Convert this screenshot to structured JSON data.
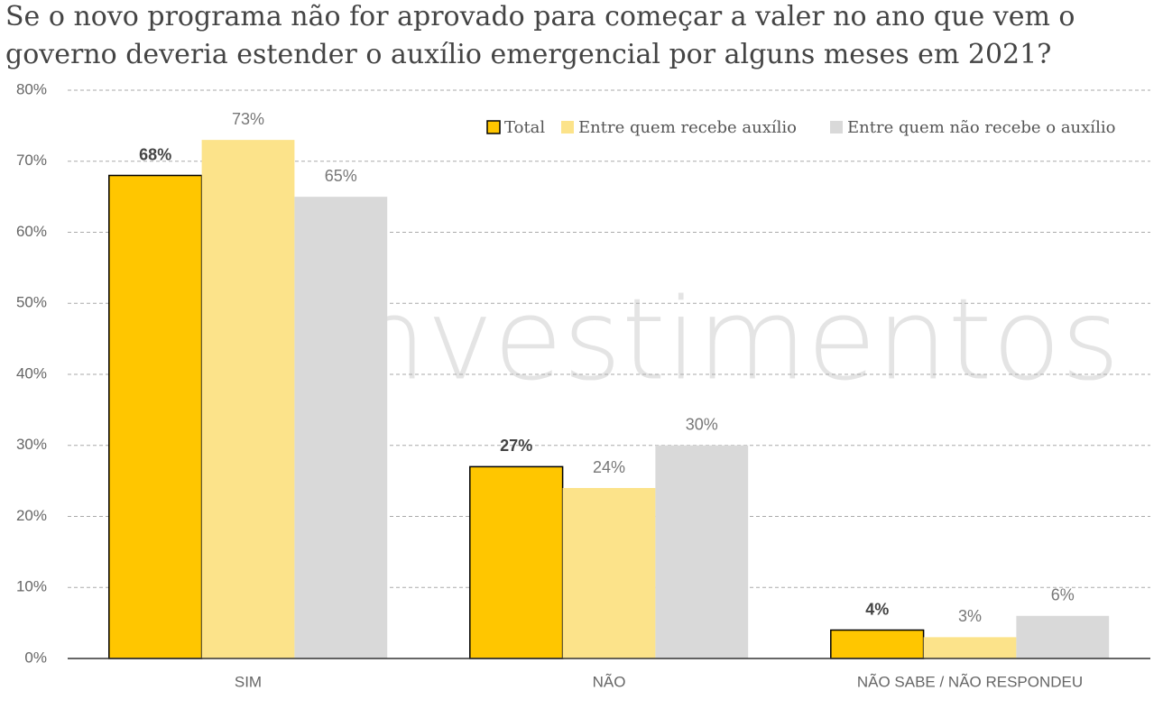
{
  "chart_data": {
    "type": "bar",
    "title": [
      "Se o novo programa não for aprovado para começar a valer no ano que vem o",
      "governo deveria estender o auxílio emergencial por alguns meses em 2021?"
    ],
    "watermark": "investimentos",
    "categories": [
      "SIM",
      "NÃO",
      "NÃO SABE / NÃO RESPONDEU"
    ],
    "series": [
      {
        "name": "Total",
        "color": "#FFC600",
        "values": [
          68,
          27,
          4
        ],
        "value_labels": [
          "68%",
          "27%",
          "4%"
        ]
      },
      {
        "name": "Entre quem recebe auxílio",
        "color": "#FCE38A",
        "values": [
          73,
          24,
          3
        ],
        "value_labels": [
          "73%",
          "24%",
          "3%"
        ]
      },
      {
        "name": "Entre quem não recebe o auxílio",
        "color": "#D9D9D9",
        "values": [
          65,
          30,
          6
        ],
        "value_labels": [
          "65%",
          "30%",
          "6%"
        ]
      }
    ],
    "ylim": [
      0,
      80
    ],
    "yticks": [
      {
        "value": 0,
        "label": "0%"
      },
      {
        "value": 10,
        "label": "10%"
      },
      {
        "value": 20,
        "label": "20%"
      },
      {
        "value": 30,
        "label": "30%"
      },
      {
        "value": 40,
        "label": "40%"
      },
      {
        "value": 50,
        "label": "50%"
      },
      {
        "value": 60,
        "label": "60%"
      },
      {
        "value": 70,
        "label": "70%"
      },
      {
        "value": 80,
        "label": "80%"
      }
    ],
    "grid": true
  }
}
